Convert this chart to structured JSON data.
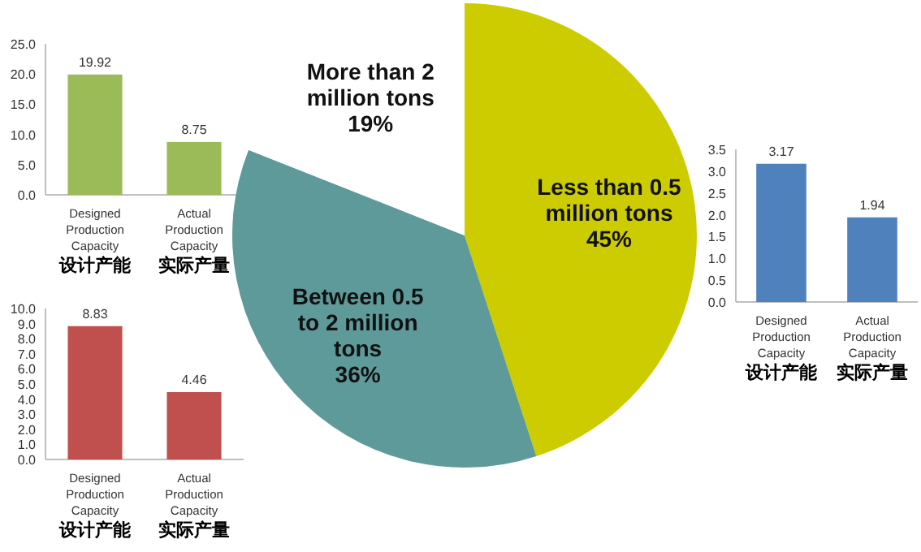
{
  "chart_data": [
    {
      "type": "bar",
      "categories": [
        "Designed Production Capacity\n设计产能",
        "Actual Production Capacity\n实际产量"
      ],
      "values": [
        19.92,
        8.75
      ],
      "color": "#9bbb59",
      "data_labels": true,
      "grid": false,
      "ylim": [
        0,
        25
      ],
      "yticks": [
        {
          "value": 0,
          "label": "0.0"
        },
        {
          "value": 5,
          "label": "5.0"
        },
        {
          "value": 10,
          "label": "10.0"
        },
        {
          "value": 15,
          "label": "15.0"
        },
        {
          "value": 20,
          "label": "20.0"
        },
        {
          "value": 25,
          "label": "25.0"
        }
      ]
    },
    {
      "type": "pie",
      "categories": [
        "Less than 0.5 million tons",
        "Between 0.5 to 2 million tons",
        "More than 2 million tons"
      ],
      "values": [
        45,
        36,
        19
      ],
      "colors": [
        "#cccc00",
        "#5f9a9a",
        "#ffffff"
      ],
      "value_labels": [
        "45%",
        "36%",
        "19%"
      ]
    },
    {
      "type": "bar",
      "categories": [
        "Designed Production Capacity\n设计产能",
        "Actual Production Capacity\n实际产量"
      ],
      "values": [
        3.17,
        1.94
      ],
      "color": "#4f81bd",
      "data_labels": true,
      "grid": false,
      "ylim": [
        0,
        3.5
      ],
      "yticks": [
        {
          "value": 0,
          "label": "0.0"
        },
        {
          "value": 0.5,
          "label": "0.5"
        },
        {
          "value": 1,
          "label": "1.0"
        },
        {
          "value": 1.5,
          "label": "1.5"
        },
        {
          "value": 2,
          "label": "2.0"
        },
        {
          "value": 2.5,
          "label": "2.5"
        },
        {
          "value": 3,
          "label": "3.0"
        },
        {
          "value": 3.5,
          "label": "3.5"
        }
      ]
    },
    {
      "type": "bar",
      "categories": [
        "Designed Production Capacity\n设计产能",
        "Actual Production Capacity\n实际产量"
      ],
      "values": [
        8.83,
        4.46
      ],
      "color": "#c0504d",
      "data_labels": true,
      "grid": false,
      "ylim": [
        0,
        10
      ],
      "yticks": [
        {
          "value": 0,
          "label": "0.0"
        },
        {
          "value": 1,
          "label": "1.0"
        },
        {
          "value": 2,
          "label": "2.0"
        },
        {
          "value": 3,
          "label": "3.0"
        },
        {
          "value": 4,
          "label": "4.0"
        },
        {
          "value": 5,
          "label": "5.0"
        },
        {
          "value": 6,
          "label": "6.0"
        },
        {
          "value": 7,
          "label": "7.0"
        },
        {
          "value": 8,
          "label": "8.0"
        },
        {
          "value": 9,
          "label": "9.0"
        },
        {
          "value": 10,
          "label": "10.0"
        }
      ]
    }
  ]
}
